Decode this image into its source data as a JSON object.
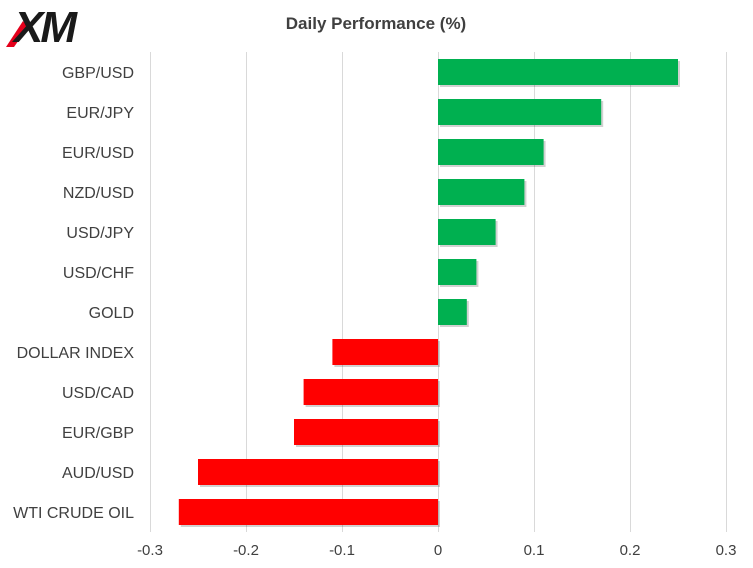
{
  "brand": {
    "logo_text": "XM",
    "logo_color": "#1a1a1a",
    "accent": "#e4001b"
  },
  "chart_data": {
    "type": "bar",
    "orientation": "horizontal",
    "title": "Daily Performance (%)",
    "categories": [
      "GBP/USD",
      "EUR/JPY",
      "EUR/USD",
      "NZD/USD",
      "USD/JPY",
      "USD/CHF",
      "GOLD",
      "DOLLAR INDEX",
      "USD/CAD",
      "EUR/GBP",
      "AUD/USD",
      "WTI CRUDE OIL"
    ],
    "values": [
      0.25,
      0.17,
      0.11,
      0.09,
      0.06,
      0.04,
      0.03,
      -0.11,
      -0.14,
      -0.15,
      -0.25,
      -0.27
    ],
    "xlim": [
      -0.3,
      0.3
    ],
    "xticks": [
      -0.3,
      -0.2,
      -0.1,
      0,
      0.1,
      0.2,
      0.3
    ],
    "xtick_labels": [
      "-0.3",
      "-0.2",
      "-0.1",
      "0",
      "0.1",
      "0.2",
      "0.3"
    ],
    "grid": "vertical",
    "legend": "none",
    "colors": {
      "positive": "#00b050",
      "negative": "#ff0000",
      "grid": "#d9d9d9",
      "text": "#404040"
    }
  }
}
